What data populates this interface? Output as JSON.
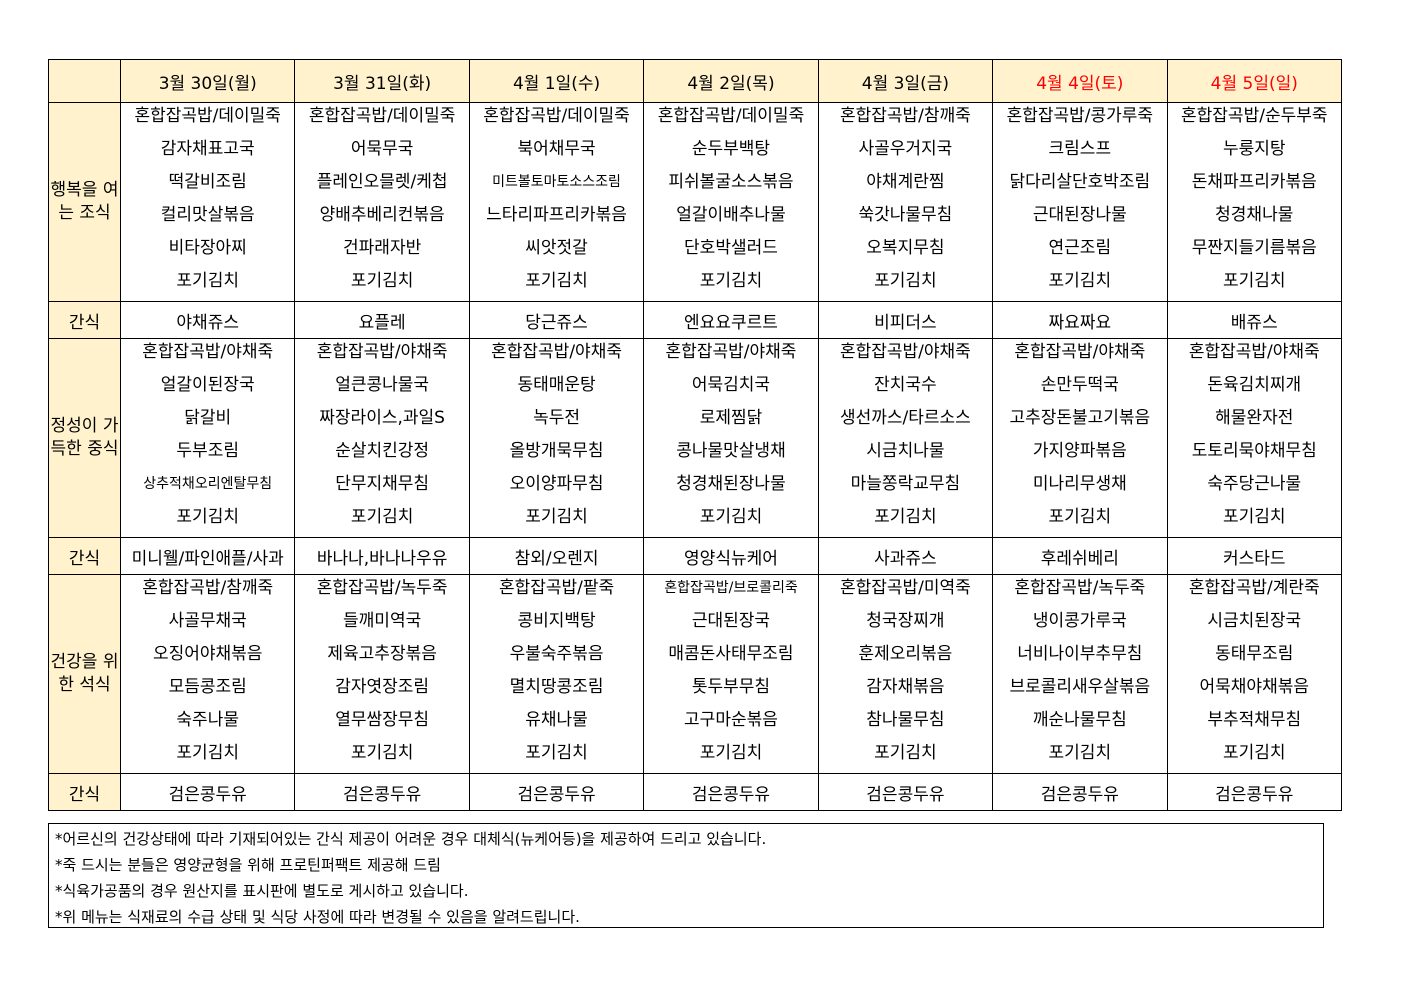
{
  "colors": {
    "header_bg": "#FFF2CC",
    "weekend": "#FF0000"
  },
  "days": [
    {
      "label": "3월  30일(월)",
      "weekend": false
    },
    {
      "label": "3월  31일(화)",
      "weekend": false
    },
    {
      "label": "4월  1일(수)",
      "weekend": false
    },
    {
      "label": "4월  2일(목)",
      "weekend": false
    },
    {
      "label": "4월  3일(금)",
      "weekend": false
    },
    {
      "label": "4월  4일(토)",
      "weekend": true
    },
    {
      "label": "4월  5일(일)",
      "weekend": true
    }
  ],
  "meals": [
    {
      "label": "행복을 여는 조식",
      "items": [
        [
          "혼합잡곡밥/데이밀죽",
          "감자채표고국",
          "떡갈비조림",
          "컬리맛살볶음",
          "비타장아찌",
          "포기김치"
        ],
        [
          "혼합잡곡밥/데이밀죽",
          "어묵무국",
          "플레인오믈렛/케첩",
          "양배추베리컨볶음",
          "건파래자반",
          "포기김치"
        ],
        [
          "혼합잡곡밥/데이밀죽",
          "북어채무국",
          "미트볼토마토소스조림",
          "느타리파프리카볶음",
          "씨앗젓갈",
          "포기김치"
        ],
        [
          "혼합잡곡밥/데이밀죽",
          "순두부백탕",
          "피쉬볼굴소스볶음",
          "얼갈이배추나물",
          "단호박샐러드",
          "포기김치"
        ],
        [
          "혼합잡곡밥/참깨죽",
          "사골우거지국",
          "야채계란찜",
          "쑥갓나물무침",
          "오복지무침",
          "포기김치"
        ],
        [
          "혼합잡곡밥/콩가루죽",
          "크림스프",
          "닭다리살단호박조림",
          "근대된장나물",
          "연근조림",
          "포기김치"
        ],
        [
          "혼합잡곡밥/순두부죽",
          "누룽지탕",
          "돈채파프리카볶음",
          "청경채나물",
          "무짠지들기름볶음",
          "포기김치"
        ]
      ],
      "snack_label": "간식",
      "snacks": [
        "야채쥬스",
        "요플레",
        "당근쥬스",
        "엔요요쿠르트",
        "비피더스",
        "짜요짜요",
        "배쥬스"
      ]
    },
    {
      "label": "정성이 가득한 중식",
      "items": [
        [
          "혼합잡곡밥/야채죽",
          "얼갈이된장국",
          "닭갈비",
          "두부조림",
          "상추적채오리엔탈무침",
          "포기김치"
        ],
        [
          "혼합잡곡밥/야채죽",
          "얼큰콩나물국",
          "짜장라이스,과일S",
          "순살치킨강정",
          "단무지채무침",
          "포기김치"
        ],
        [
          "혼합잡곡밥/야채죽",
          "동태매운탕",
          "녹두전",
          "올방개묵무침",
          "오이양파무침",
          "포기김치"
        ],
        [
          "혼합잡곡밥/야채죽",
          "어묵김치국",
          "로제찜닭",
          "콩나물맛살냉채",
          "청경채된장나물",
          "포기김치"
        ],
        [
          "혼합잡곡밥/야채죽",
          "잔치국수",
          "생선까스/타르소스",
          "시금치나물",
          "마늘쫑락교무침",
          "포기김치"
        ],
        [
          "혼합잡곡밥/야채죽",
          "손만두떡국",
          "고추장돈불고기볶음",
          "가지양파볶음",
          "미나리무생채",
          "포기김치"
        ],
        [
          "혼합잡곡밥/야채죽",
          "돈육김치찌개",
          "해물완자전",
          "도토리묵야채무침",
          "숙주당근나물",
          "포기김치"
        ]
      ],
      "snack_label": "간식",
      "snacks": [
        "미니웰/파인애플/사과",
        "바나나,바나나우유",
        "참외/오렌지",
        "영양식뉴케어",
        "사과쥬스",
        "후레쉬베리",
        "커스타드"
      ]
    },
    {
      "label": "건강을 위한 석식",
      "items": [
        [
          "혼합잡곡밥/참깨죽",
          "사골무채국",
          "오징어야채볶음",
          "모듬콩조림",
          "숙주나물",
          "포기김치"
        ],
        [
          "혼합잡곡밥/녹두죽",
          "들깨미역국",
          "제육고추장볶음",
          "감자엿장조림",
          "열무쌈장무침",
          "포기김치"
        ],
        [
          "혼합잡곡밥/팥죽",
          "콩비지백탕",
          "우불숙주볶음",
          "멸치땅콩조림",
          "유채나물",
          "포기김치"
        ],
        [
          "혼합잡곡밥/브로콜리죽",
          "근대된장국",
          "매콤돈사태무조림",
          "톳두부무침",
          "고구마순볶음",
          "포기김치"
        ],
        [
          "혼합잡곡밥/미역죽",
          "청국장찌개",
          "훈제오리볶음",
          "감자채볶음",
          "참나물무침",
          "포기김치"
        ],
        [
          "혼합잡곡밥/녹두죽",
          "냉이콩가루국",
          "너비나이부추무침",
          "브로콜리새우살볶음",
          "깨순나물무침",
          "포기김치"
        ],
        [
          "혼합잡곡밥/계란죽",
          "시금치된장국",
          "동태무조림",
          "어묵채야채볶음",
          "부추적채무침",
          "포기김치"
        ]
      ],
      "snack_label": "간식",
      "snacks": [
        "검은콩두유",
        "검은콩두유",
        "검은콩두유",
        "검은콩두유",
        "검은콩두유",
        "검은콩두유",
        "검은콩두유"
      ]
    }
  ],
  "notes": [
    "*어르신의 건강상태에 따라 기재되어있는 간식 제공이 어려운 경우 대체식(뉴케어등)을 제공하여 드리고 있습니다.",
    "*죽 드시는 분들은 영양균형을 위해 프로틴퍼팩트 제공해 드림",
    "*식육가공품의 경우 원산지를 표시판에 별도로 게시하고 있습니다.",
    "*위 메뉴는 식재료의 수급 상태 및 식당 사정에 따라 변경될 수 있음을 알려드립니다."
  ]
}
